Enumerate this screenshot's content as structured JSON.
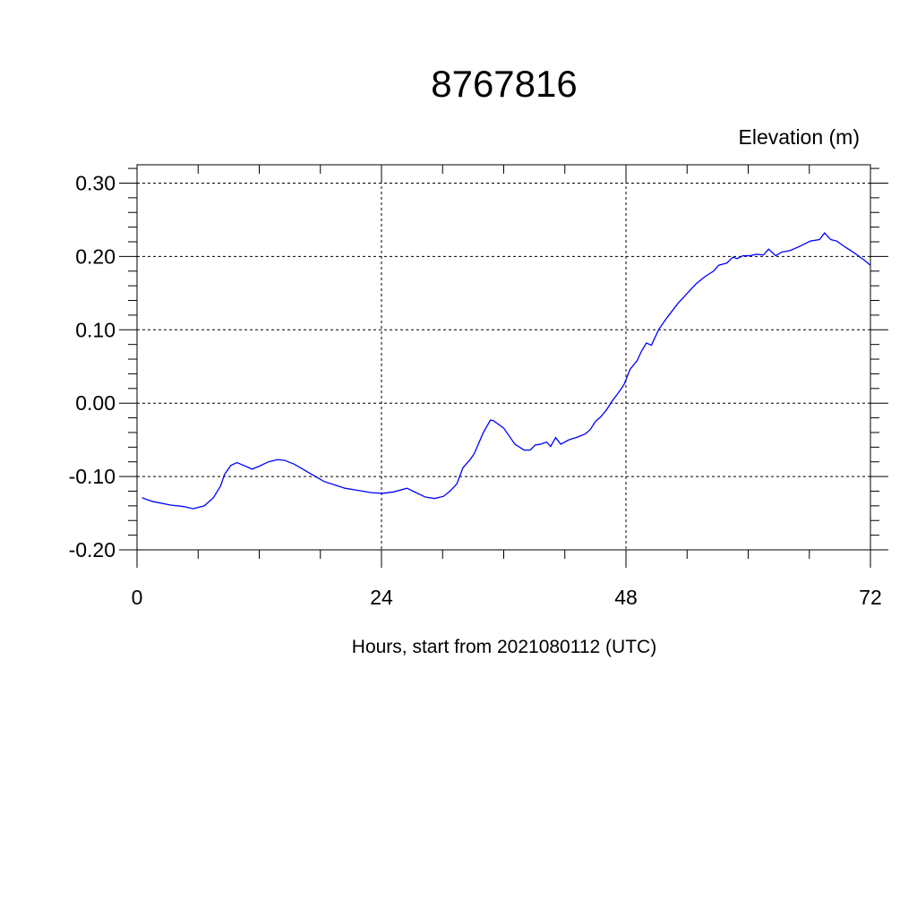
{
  "chart_data": {
    "type": "line",
    "title": "8767816",
    "ylabel": "Elevation (m)",
    "xlabel": "Hours, start from 2021080112 (UTC)",
    "x": [
      0.5,
      1.5,
      3.3,
      4.6,
      5.5,
      6.6,
      7.5,
      8.2,
      8.6,
      9.2,
      9.8,
      10.5,
      11.3,
      12.0,
      12.9,
      13.8,
      14.5,
      15.4,
      16.4,
      17.5,
      18.4,
      19.3,
      20.4,
      21.7,
      23.0,
      24.1,
      25.2,
      26.5,
      27.4,
      28.3,
      29.2,
      30.1,
      30.8,
      31.4,
      32.0,
      32.7,
      33.1,
      34.0,
      34.7,
      35.0,
      36.0,
      37.1,
      38.0,
      38.6,
      39.1,
      39.6,
      40.2,
      40.6,
      41.1,
      41.6,
      42.4,
      43.3,
      44.0,
      44.5,
      45.0,
      45.5,
      46.1,
      46.6,
      47.2,
      47.8,
      48.4,
      49.1,
      49.5,
      50.0,
      50.5,
      51.2,
      52.0,
      53.1,
      53.9,
      54.9,
      55.8,
      56.6,
      57.1,
      57.9,
      58.5,
      58.9,
      59.5,
      60.2,
      60.8,
      61.5,
      62.0,
      62.7,
      63.3,
      64.1,
      65.1,
      66.1,
      67.0,
      67.5,
      68.1,
      68.7,
      69.5,
      70.4,
      71.4,
      72.0
    ],
    "series": [
      {
        "name": "Elevation",
        "color": "#0000ff",
        "values": [
          -0.129,
          -0.134,
          -0.139,
          -0.141,
          -0.144,
          -0.14,
          -0.129,
          -0.113,
          -0.097,
          -0.085,
          -0.081,
          -0.085,
          -0.09,
          -0.086,
          -0.08,
          -0.077,
          -0.078,
          -0.083,
          -0.091,
          -0.1,
          -0.107,
          -0.111,
          -0.116,
          -0.119,
          -0.122,
          -0.123,
          -0.121,
          -0.116,
          -0.122,
          -0.128,
          -0.13,
          -0.127,
          -0.119,
          -0.11,
          -0.088,
          -0.077,
          -0.069,
          -0.04,
          -0.023,
          -0.024,
          -0.034,
          -0.056,
          -0.064,
          -0.064,
          -0.057,
          -0.056,
          -0.053,
          -0.059,
          -0.047,
          -0.056,
          -0.05,
          -0.046,
          -0.042,
          -0.036,
          -0.025,
          -0.019,
          -0.009,
          0.002,
          0.013,
          0.025,
          0.046,
          0.058,
          0.07,
          0.082,
          0.079,
          0.1,
          0.116,
          0.136,
          0.148,
          0.163,
          0.173,
          0.18,
          0.188,
          0.191,
          0.199,
          0.197,
          0.201,
          0.201,
          0.203,
          0.202,
          0.21,
          0.201,
          0.206,
          0.208,
          0.214,
          0.221,
          0.223,
          0.232,
          0.223,
          0.221,
          0.213,
          0.205,
          0.195,
          0.188
        ]
      }
    ],
    "xlim": [
      0,
      72
    ],
    "xticks": [
      0,
      24,
      48,
      72
    ],
    "ylim": [
      -0.2,
      0.325
    ],
    "yticks": [
      {
        "value": -0.2,
        "label": "-0.20"
      },
      {
        "value": -0.1,
        "label": "-0.10"
      },
      {
        "value": 0,
        "label": "0.00"
      },
      {
        "value": 0.1,
        "label": "0.10"
      },
      {
        "value": 0.2,
        "label": "0.20"
      },
      {
        "value": 0.3,
        "label": "0.30"
      }
    ],
    "grid": true
  }
}
